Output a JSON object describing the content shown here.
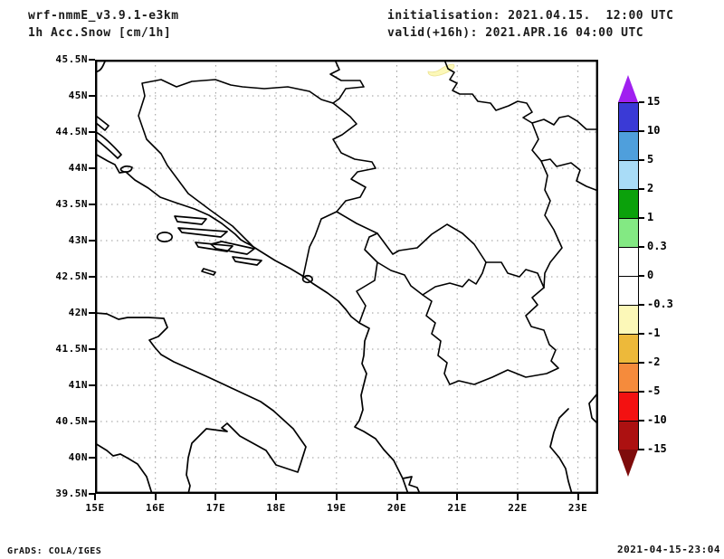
{
  "header": {
    "model": "wrf-nmmE_v3.9.1-e3km",
    "variable": "1h Acc.Snow [cm/1h]",
    "init_label": "initialisation: 2021.04.15.  12:00 UTC",
    "valid_label": "valid(+16h): 2021.APR.16 04:00 UTC"
  },
  "footer": {
    "credit": "GrADS: COLA/IGES",
    "timestamp": "2021-04-15-23:04"
  },
  "chart_data": {
    "type": "heatmap",
    "title": "1h Acc.Snow [cm/1h]",
    "subtitle": "wrf-nmmE_v3.9.1-e3km",
    "units": "cm/1h",
    "x_axis": {
      "values": [
        15,
        16,
        17,
        18,
        19,
        20,
        21,
        22,
        23
      ],
      "labels": [
        "15E",
        "16E",
        "17E",
        "18E",
        "19E",
        "20E",
        "21E",
        "22E",
        "23E"
      ],
      "range": [
        15,
        23.35
      ]
    },
    "y_axis": {
      "values": [
        45.5,
        45,
        44.5,
        44,
        43.5,
        43,
        42.5,
        42,
        41.5,
        41,
        40.5,
        40,
        39.5
      ],
      "labels": [
        "45.5N",
        "45N",
        "44.5N",
        "44N",
        "43.5N",
        "43N",
        "42.5N",
        "42N",
        "41.5N",
        "41N",
        "40.5N",
        "40N",
        "39.5N"
      ],
      "range": [
        39.5,
        45.5
      ]
    },
    "grid": true,
    "grid_style": "dotted gray, 1-deg lon x 0.5-deg lat",
    "colorbar": {
      "labels": [
        "15",
        "10",
        "5",
        "2",
        "1",
        "0.3",
        "0",
        "-0.3",
        "-1",
        "-2",
        "-5",
        "-10",
        "-15"
      ],
      "segment_colors": [
        "#3a3ad6",
        "#4f9fdc",
        "#a9dcf7",
        "#0ba10b",
        "#83e983",
        "#ffffff",
        "#ffffff",
        "#fcf8b8",
        "#edb93a",
        "#f58b3c",
        "#f31111",
        "#ac1111"
      ],
      "over_color": "#a020f0",
      "under_color": "#7e0b0b",
      "position": "right"
    },
    "field": {
      "note": "Accumulated snow field is ~0 (white) over the whole domain except one small pale-yellow patch of the -0.3..-1 band near 20.7E, 45.35N",
      "patches": [
        {
          "lon": 20.7,
          "lat": 45.35,
          "band": "-0.3 to -1",
          "color": "#fcf8b8"
        }
      ]
    }
  }
}
